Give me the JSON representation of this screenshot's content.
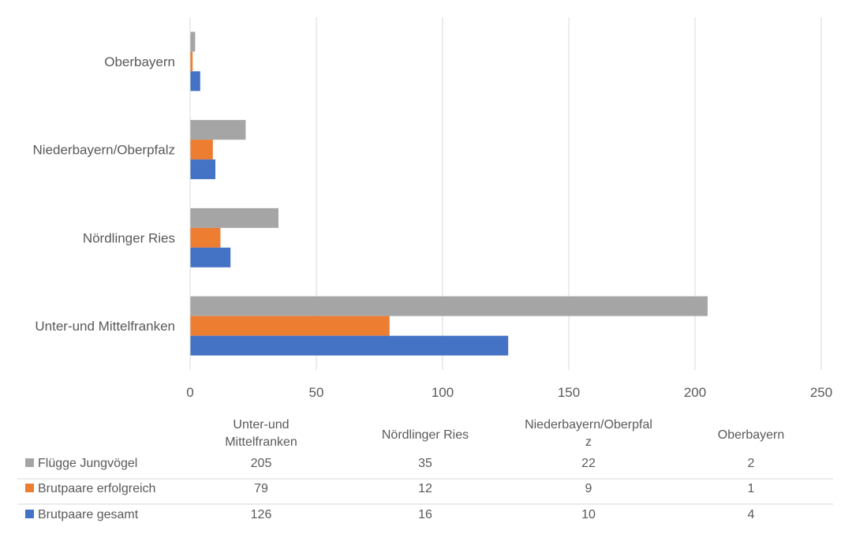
{
  "chart_data": {
    "type": "bar",
    "orientation": "horizontal",
    "categories": [
      "Unter-und Mittelfranken",
      "Nördlinger Ries",
      "Niederbayern/Oberpfalz",
      "Oberbayern"
    ],
    "table_headers": [
      "Unter-und\nMittelfranken",
      "Nördlinger Ries",
      "Niederbayern/Oberpfal\nz",
      "Oberbayern"
    ],
    "series": [
      {
        "name": "Flügge Jungvögel",
        "color": "#a5a5a5",
        "values": [
          205,
          35,
          22,
          2
        ]
      },
      {
        "name": "Brutpaare erfolgreich",
        "color": "#ed7d31",
        "values": [
          79,
          12,
          9,
          1
        ]
      },
      {
        "name": "Brutpaare gesamt",
        "color": "#4472c4",
        "values": [
          126,
          16,
          10,
          4
        ]
      }
    ],
    "xlim": [
      0,
      250
    ],
    "xticks": [
      0,
      50,
      100,
      150,
      200,
      250
    ],
    "grid": true,
    "legend": "data-table-below",
    "title": "",
    "xlabel": "",
    "ylabel": ""
  }
}
